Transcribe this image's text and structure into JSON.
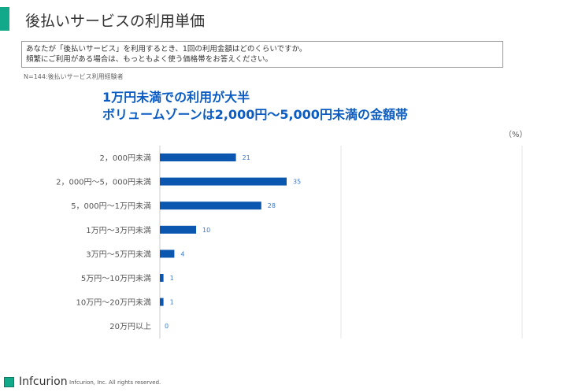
{
  "title": "後払いサービスの利用単価",
  "question": [
    "あなたが「後払いサービス」を利用するとき、1回の利用金額はどのくらいですか。",
    "頻繁にご利用がある場合は、もっともよく使う価格帯をお答えください。"
  ],
  "note": "N=144:後払いサービス利用経験者",
  "headline": [
    "1万円未満での利用が大半",
    "ボリュームゾーンは2,000円～5,000円未満の金額帯"
  ],
  "footer": {
    "logo": "Infcurion",
    "copyright": "Infcurion, Inc.  All rights reserved."
  },
  "colors": {
    "accent": "#12a98a",
    "bar": "#0b57b0",
    "headline": "#0b5cc2"
  },
  "chart_data": {
    "type": "bar",
    "orientation": "horizontal",
    "unit_label": "（%）",
    "categories": [
      "2，000円未満",
      "2，000円～5，000円未満",
      "5，000円～1万円未満",
      "1万円～3万円未満",
      "3万円～5万円未満",
      "5万円～10万円未満",
      "10万円～20万円未満",
      "20万円以上"
    ],
    "values": [
      21,
      35,
      28,
      10,
      4,
      1,
      1,
      0
    ],
    "xlim": [
      0,
      100
    ],
    "grid": true
  }
}
